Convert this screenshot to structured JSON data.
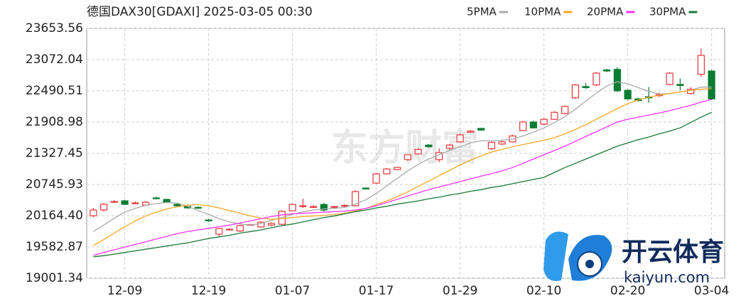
{
  "chart_data": {
    "type": "candlestick",
    "title": "德国DAX30[GDAXI] 2025-03-05 00:30",
    "categories": [
      null,
      null,
      null,
      "12-09",
      null,
      null,
      null,
      null,
      null,
      null,
      null,
      "12-19",
      null,
      null,
      null,
      null,
      null,
      null,
      null,
      "01-07",
      null,
      null,
      null,
      null,
      null,
      null,
      null,
      "01-17",
      null,
      null,
      null,
      null,
      null,
      null,
      null,
      "01-29",
      null,
      null,
      null,
      null,
      null,
      null,
      null,
      "02-10",
      null,
      null,
      null,
      null,
      null,
      null,
      null,
      "02-20",
      null,
      null,
      null,
      null,
      null,
      null,
      null,
      "03-04"
    ],
    "open": [
      20164,
      20270,
      20415,
      20442,
      20389,
      20362,
      20495,
      20468,
      20376,
      20336,
      20320,
      20085,
      19820,
      19900,
      19880,
      19990,
      19955,
      19990,
      20005,
      20257,
      20335,
      20320,
      20375,
      20320,
      20345,
      20349,
      20680,
      20772,
      20944,
      21023,
      21210,
      21315,
      21480,
      21210,
      21420,
      21540,
      21720,
      21790,
      21410,
      21500,
      21540,
      21750,
      21910,
      21870,
      21960,
      22068,
      22360,
      22570,
      22600,
      22880,
      22890,
      22500,
      22340,
      22380,
      22400,
      22610,
      22610,
      22440,
      22800,
      22860
    ],
    "high": [
      20310,
      20402,
      20455,
      20455,
      20428,
      20440,
      20520,
      20481,
      20389,
      20350,
      20336,
      20100,
      19940,
      19930,
      19995,
      20010,
      20060,
      20040,
      20270,
      20390,
      20480,
      20362,
      20400,
      20350,
      20380,
      20640,
      20690,
      20960,
      21050,
      21080,
      21310,
      21420,
      21500,
      21420,
      21500,
      21690,
      21760,
      21800,
      21550,
      21560,
      21670,
      21930,
      21930,
      21990,
      22110,
      22220,
      22620,
      22640,
      22840,
      22900,
      22930,
      22520,
      22360,
      22560,
      22460,
      22840,
      22720,
      22560,
      23280,
      22880
    ],
    "low": [
      20138,
      20244,
      20400,
      20362,
      20376,
      20350,
      20470,
      20402,
      20336,
      20296,
      20290,
      20050,
      19780,
      19890,
      19860,
      19975,
      19940,
      19965,
      19990,
      20245,
      20310,
      20310,
      20240,
      20300,
      20310,
      20336,
      20650,
      20760,
      20930,
      21010,
      21190,
      21300,
      21430,
      21160,
      21380,
      21530,
      21710,
      21750,
      21390,
      21480,
      21530,
      21740,
      21790,
      21850,
      21950,
      22050,
      22340,
      22530,
      22580,
      22840,
      22470,
      22320,
      22290,
      22270,
      22380,
      22590,
      22500,
      22420,
      22750,
      22320
    ],
    "close": [
      20270,
      20376,
      20428,
      20376,
      20402,
      20415,
      20481,
      20415,
      20350,
      20310,
      20305,
      20070,
      19926,
      19913,
      19980,
      20000,
      20045,
      20020,
      20245,
      20375,
      20349,
      20335,
      20270,
      20335,
      20356,
      20614,
      20664,
      20944,
      21035,
      21063,
      21300,
      21400,
      21450,
      21340,
      21480,
      21670,
      21740,
      21760,
      21530,
      21540,
      21650,
      21910,
      21800,
      21960,
      22090,
      22200,
      22600,
      22550,
      22820,
      22860,
      22490,
      22340,
      22310,
      22360,
      22420,
      22820,
      22590,
      22520,
      23150,
      22340
    ],
    "up_color": "#e8353b",
    "down_color": "#0a7d32",
    "series": [
      {
        "name": "5PMA",
        "color": "#aaaaaa",
        "values": [
          19870,
          19990,
          20120,
          20230,
          20300,
          20360,
          20390,
          20410,
          20400,
          20340,
          20260,
          20190,
          20110,
          20050,
          20010,
          19990,
          20020,
          20080,
          20130,
          20190,
          20240,
          20270,
          20290,
          20300,
          20320,
          20380,
          20460,
          20580,
          20720,
          20860,
          21000,
          21120,
          21220,
          21300,
          21380,
          21450,
          21520,
          21560,
          21560,
          21570,
          21590,
          21650,
          21720,
          21800,
          21900,
          22010,
          22150,
          22300,
          22450,
          22580,
          22660,
          22620,
          22550,
          22480,
          22430,
          22440,
          22470,
          22500,
          22560,
          22560
        ]
      },
      {
        "name": "10PMA",
        "color": "#f5a623",
        "values": [
          19610,
          19720,
          19840,
          19960,
          20070,
          20160,
          20230,
          20290,
          20330,
          20360,
          20370,
          20350,
          20310,
          20260,
          20210,
          20160,
          20120,
          20100,
          20110,
          20130,
          20150,
          20160,
          20170,
          20190,
          20210,
          20250,
          20300,
          20370,
          20440,
          20520,
          20610,
          20710,
          20810,
          20910,
          21010,
          21110,
          21200,
          21280,
          21350,
          21400,
          21450,
          21490,
          21530,
          21570,
          21620,
          21690,
          21770,
          21860,
          21960,
          22060,
          22160,
          22250,
          22320,
          22370,
          22410,
          22440,
          22470,
          22500,
          22520,
          22530
        ]
      },
      {
        "name": "20PMA",
        "color": "#ff33ff",
        "values": [
          19425,
          19480,
          19530,
          19580,
          19630,
          19680,
          19730,
          19780,
          19830,
          19870,
          19900,
          19930,
          19960,
          19990,
          20030,
          20070,
          20110,
          20150,
          20180,
          20200,
          20210,
          20220,
          20230,
          20240,
          20250,
          20270,
          20300,
          20350,
          20410,
          20470,
          20530,
          20590,
          20650,
          20700,
          20750,
          20800,
          20850,
          20900,
          20950,
          21000,
          21060,
          21140,
          21220,
          21300,
          21380,
          21460,
          21550,
          21640,
          21730,
          21820,
          21910,
          21960,
          22000,
          22040,
          22080,
          22120,
          22170,
          22220,
          22280,
          22330
        ]
      },
      {
        "name": "30PMA",
        "color": "#1a7a3a",
        "values": [
          19400,
          19420,
          19450,
          19480,
          19510,
          19540,
          19570,
          19600,
          19630,
          19660,
          19700,
          19740,
          19770,
          19800,
          19840,
          19870,
          19900,
          19940,
          19980,
          20010,
          20050,
          20090,
          20130,
          20160,
          20200,
          20240,
          20270,
          20310,
          20340,
          20380,
          20410,
          20440,
          20480,
          20510,
          20550,
          20580,
          20620,
          20650,
          20690,
          20720,
          20760,
          20800,
          20840,
          20880,
          20970,
          21060,
          21140,
          21220,
          21300,
          21380,
          21460,
          21520,
          21580,
          21630,
          21690,
          21740,
          21800,
          21900,
          22000,
          22090
        ]
      }
    ],
    "ylim": [
      19001.34,
      23653.56
    ],
    "yticks": [
      19001.34,
      19582.87,
      {
        "value": 20164.4,
        "label": "20164.40"
      },
      20745.93,
      21327.45,
      21908.98,
      22490.51,
      23072.04,
      23653.56
    ],
    "grid": true,
    "legend": "top-right",
    "watermark": "东方财富",
    "logo": {
      "text": "开云体育",
      "url": "kaiyun.com"
    }
  }
}
